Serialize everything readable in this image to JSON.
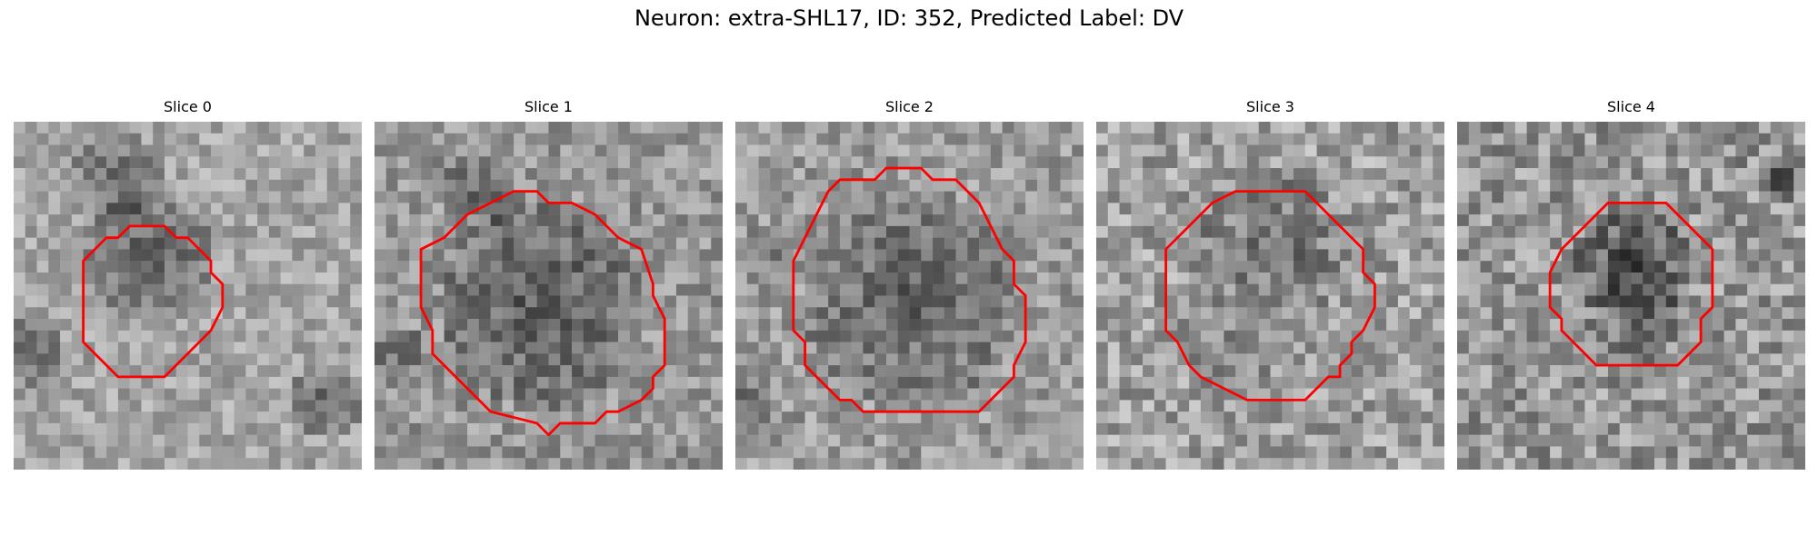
{
  "figure": {
    "title": "Neuron: extra-SHL17, ID: 352, Predicted Label: DV",
    "contour_color": "#ff0000"
  },
  "panels": [
    {
      "title": "Slice 0"
    },
    {
      "title": "Slice 1"
    },
    {
      "title": "Slice 2"
    },
    {
      "title": "Slice 3"
    },
    {
      "title": "Slice 4"
    }
  ]
}
